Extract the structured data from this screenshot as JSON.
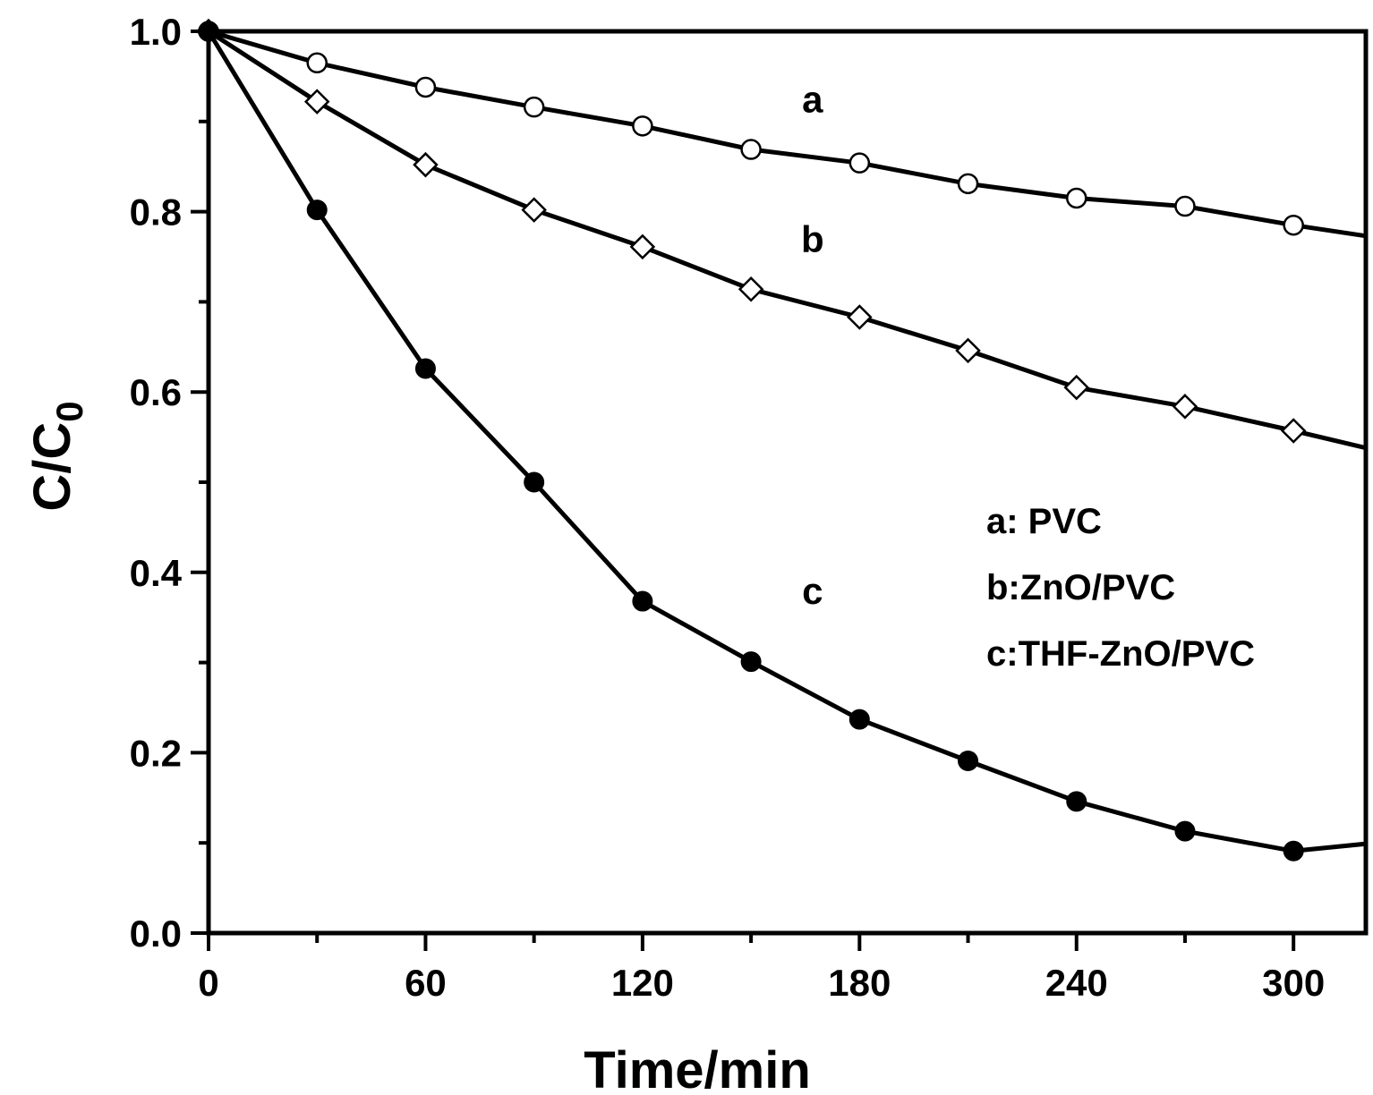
{
  "chart_data": {
    "type": "line",
    "xlabel": "Time/min",
    "ylabel": {
      "main": "C/C",
      "sub": "0"
    },
    "xlim": [
      0,
      320
    ],
    "ylim": [
      0,
      1.0
    ],
    "x_ticks": [
      "0",
      "60",
      "120",
      "180",
      "240",
      "300"
    ],
    "y_ticks": [
      "0.0",
      "0.2",
      "0.4",
      "0.6",
      "0.8",
      "1.0"
    ],
    "x_minor_step": 30,
    "y_minor_step": 0.1,
    "grid": false,
    "legend": {
      "placement": "right-middle",
      "entries": [
        "a: PVC",
        "b:ZnO/PVC",
        "c:THF-ZnO/PVC"
      ]
    },
    "series": [
      {
        "name": "a",
        "marker": "open-circle",
        "x": [
          0,
          30,
          60,
          90,
          120,
          150,
          180,
          210,
          240,
          270,
          300,
          320
        ],
        "y": [
          1.0,
          0.965,
          0.938,
          0.916,
          0.895,
          0.869,
          0.854,
          0.831,
          0.815,
          0.806,
          0.785,
          0.773
        ],
        "markers_count": 11
      },
      {
        "name": "b",
        "marker": "open-diamond",
        "x": [
          0,
          30,
          60,
          90,
          120,
          150,
          180,
          210,
          240,
          270,
          300,
          320
        ],
        "y": [
          1.0,
          0.922,
          0.852,
          0.802,
          0.761,
          0.714,
          0.683,
          0.646,
          0.605,
          0.584,
          0.557,
          0.538
        ],
        "markers_count": 11
      },
      {
        "name": "c",
        "marker": "filled-circle",
        "x": [
          0,
          30,
          60,
          90,
          120,
          150,
          180,
          210,
          240,
          270,
          300,
          320
        ],
        "y": [
          1.0,
          0.802,
          0.626,
          0.5,
          0.368,
          0.301,
          0.237,
          0.191,
          0.146,
          0.113,
          0.091,
          0.099
        ],
        "markers_count": 11
      }
    ],
    "curve_labels": [
      {
        "text": "a",
        "x": 167,
        "y": 0.91
      },
      {
        "text": "b",
        "x": 167,
        "y": 0.755
      },
      {
        "text": "c",
        "x": 167,
        "y": 0.365
      }
    ]
  }
}
